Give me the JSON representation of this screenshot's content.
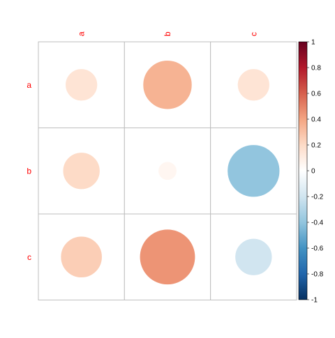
{
  "chart_data": {
    "type": "heatmap",
    "style": "circle correlation matrix",
    "rows": [
      "a",
      "b",
      "c"
    ],
    "cols": [
      "a",
      "b",
      "c"
    ],
    "values": [
      [
        0.15,
        0.35,
        0.15
      ],
      [
        0.2,
        0.05,
        -0.4
      ],
      [
        0.25,
        0.45,
        -0.2
      ]
    ],
    "label_color": "#ff0000",
    "grid": true,
    "colorbar": {
      "range": [
        -1,
        1
      ],
      "ticks": [
        "1",
        "0.8",
        "0.6",
        "0.4",
        "0.2",
        "0",
        "-0.2",
        "-0.4",
        "-0.6",
        "-0.8",
        "-1"
      ],
      "colors": [
        "#67001f",
        "#b2182b",
        "#d6604d",
        "#f4a582",
        "#fddbc7",
        "#ffffff",
        "#d1e5f0",
        "#92c5de",
        "#4393c3",
        "#2166ac",
        "#053061"
      ]
    }
  }
}
